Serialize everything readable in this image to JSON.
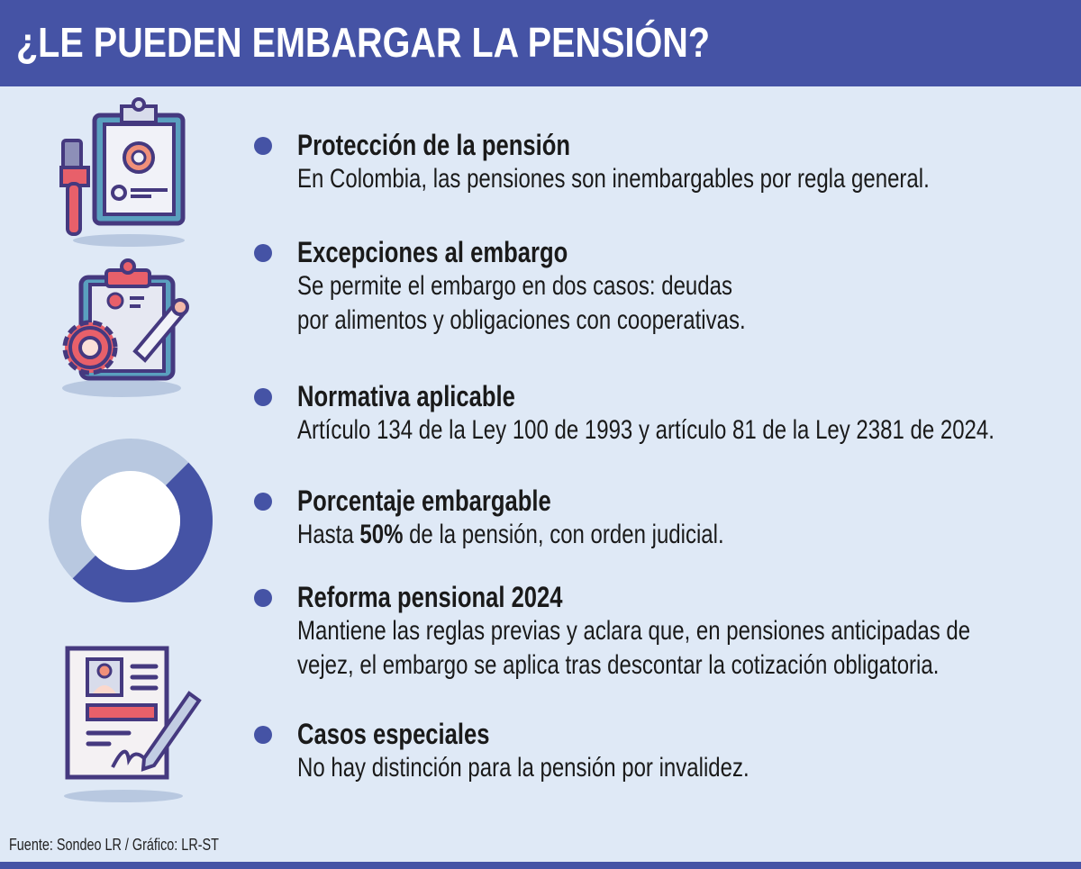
{
  "header": {
    "title": "¿LE PUEDEN EMBARGAR LA PENSIÓN?"
  },
  "items": [
    {
      "title": "Protección de la pensión",
      "lines": [
        "En Colombia, las pensiones son inembargables por regla general."
      ]
    },
    {
      "title": "Excepciones al embargo",
      "lines": [
        "Se permite el embargo en dos casos: deudas",
        "por alimentos y obligaciones con cooperativas."
      ]
    },
    {
      "title": "Normativa aplicable",
      "lines": [
        "Artículo 134 de la Ley 100 de 1993 y artículo 81 de la Ley 2381 de 2024."
      ]
    },
    {
      "title": "Porcentaje embargable",
      "pre": "Hasta ",
      "bold": "50%",
      "post": " de la pensión, con orden judicial."
    },
    {
      "title": "Reforma pensional 2024",
      "lines": [
        "Mantiene las reglas previas y aclara que, en pensiones anticipadas de",
        "vejez, el embargo se aplica tras descontar la cotización obligatoria."
      ]
    },
    {
      "title": "Casos especiales",
      "lines": [
        "No hay distinción para la pensión por invalidez."
      ]
    }
  ],
  "donut": {
    "embargable_percent": 50
  },
  "colors": {
    "primary": "#4553a5",
    "background": "#dfe9f6",
    "donut_light": "#b8c8e0",
    "accent_red": "#e8606a"
  },
  "footer": {
    "source": "Fuente: Sondeo LR / Gráfico: LR-ST"
  }
}
